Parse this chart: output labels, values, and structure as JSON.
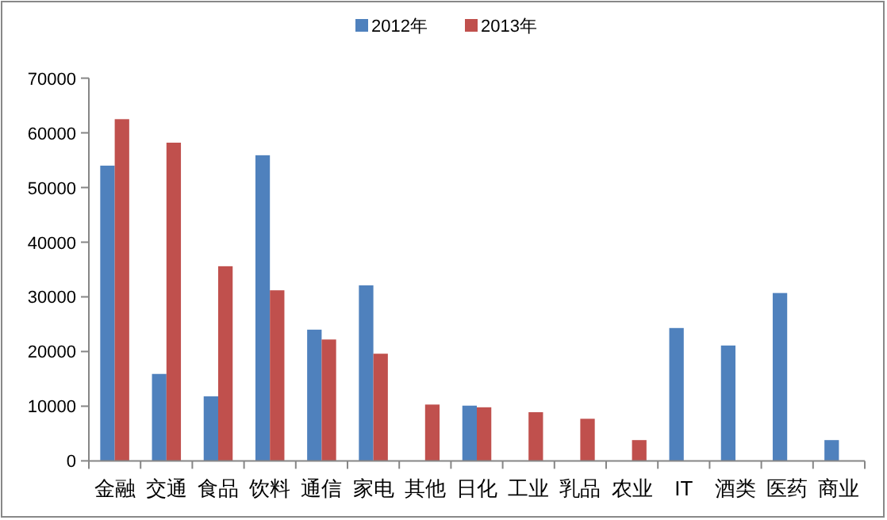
{
  "chart_data": {
    "type": "bar",
    "categories": [
      "金融",
      "交通",
      "食品",
      "饮料",
      "通信",
      "家电",
      "其他",
      "日化",
      "工业",
      "乳品",
      "农业",
      "IT",
      "酒类",
      "医药",
      "商业"
    ],
    "series": [
      {
        "name": "2012年",
        "color": "#4f81bd",
        "values": [
          54000,
          15900,
          11800,
          55900,
          24000,
          32100,
          null,
          10100,
          null,
          null,
          null,
          24300,
          21100,
          30700,
          3800
        ]
      },
      {
        "name": "2013年",
        "color": "#c0504d",
        "values": [
          62500,
          58200,
          35600,
          31200,
          22200,
          19600,
          10300,
          9800,
          8900,
          7700,
          3800,
          null,
          null,
          null,
          null
        ]
      }
    ],
    "ylim": [
      0,
      70000
    ],
    "yticks": [
      0,
      10000,
      20000,
      30000,
      40000,
      50000,
      60000,
      70000
    ],
    "grid": false,
    "legend": "top"
  }
}
